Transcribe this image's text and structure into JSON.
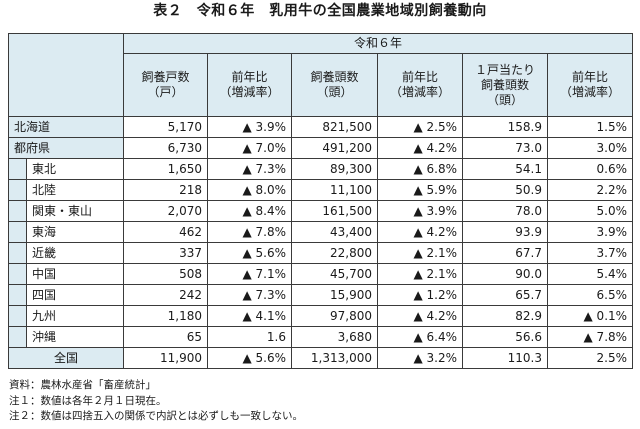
{
  "title": "表２　令和６年　乳用牛の全国農業地域別飼養動向",
  "header": {
    "year": "令和６年",
    "col_households": "飼養戸数\n（戸）",
    "col_households_yoy": "前年比\n（増減率）",
    "col_heads": "飼養頭数\n（頭）",
    "col_heads_yoy": "前年比\n（増減率）",
    "col_per_household": "１戸当たり\n飼養頭数\n（頭）",
    "col_per_household_yoy": "前年比\n（増減率）"
  },
  "rows": [
    {
      "region": "北海道",
      "households": "5,170",
      "households_yoy": "▲ 3.9%",
      "heads": "821,500",
      "heads_yoy": "▲ 2.5%",
      "per": "158.9",
      "per_yoy": "1.5%"
    },
    {
      "region": "都府県",
      "households": "6,730",
      "households_yoy": "▲ 7.0%",
      "heads": "491,200",
      "heads_yoy": "▲ 4.2%",
      "per": "73.0",
      "per_yoy": "3.0%"
    },
    {
      "region": "東北",
      "households": "1,650",
      "households_yoy": "▲ 7.3%",
      "heads": "89,300",
      "heads_yoy": "▲ 6.8%",
      "per": "54.1",
      "per_yoy": "0.6%"
    },
    {
      "region": "北陸",
      "households": "218",
      "households_yoy": "▲ 8.0%",
      "heads": "11,100",
      "heads_yoy": "▲ 5.9%",
      "per": "50.9",
      "per_yoy": "2.2%"
    },
    {
      "region": "関東・東山",
      "households": "2,070",
      "households_yoy": "▲ 8.4%",
      "heads": "161,500",
      "heads_yoy": "▲ 3.9%",
      "per": "78.0",
      "per_yoy": "5.0%"
    },
    {
      "region": "東海",
      "households": "462",
      "households_yoy": "▲ 7.8%",
      "heads": "43,400",
      "heads_yoy": "▲ 4.2%",
      "per": "93.9",
      "per_yoy": "3.9%"
    },
    {
      "region": "近畿",
      "households": "337",
      "households_yoy": "▲ 5.6%",
      "heads": "22,800",
      "heads_yoy": "▲ 2.1%",
      "per": "67.7",
      "per_yoy": "3.7%"
    },
    {
      "region": "中国",
      "households": "508",
      "households_yoy": "▲ 7.1%",
      "heads": "45,700",
      "heads_yoy": "▲ 2.1%",
      "per": "90.0",
      "per_yoy": "5.4%"
    },
    {
      "region": "四国",
      "households": "242",
      "households_yoy": "▲ 7.3%",
      "heads": "15,900",
      "heads_yoy": "▲ 1.2%",
      "per": "65.7",
      "per_yoy": "6.5%"
    },
    {
      "region": "九州",
      "households": "1,180",
      "households_yoy": "▲ 4.1%",
      "heads": "97,800",
      "heads_yoy": "▲ 4.2%",
      "per": "82.9",
      "per_yoy": "▲ 0.1%"
    },
    {
      "region": "沖縄",
      "households": "65",
      "households_yoy": "1.6",
      "heads": "3,680",
      "heads_yoy": "▲ 6.4%",
      "per": "56.6",
      "per_yoy": "▲ 7.8%"
    },
    {
      "region": "全国",
      "households": "11,900",
      "households_yoy": "▲ 5.6%",
      "heads": "1,313,000",
      "heads_yoy": "▲ 3.2%",
      "per": "110.3",
      "per_yoy": "2.5%"
    }
  ],
  "notes": [
    "資料：農林水産省「畜産統計」",
    "注１：数値は各年２月１日現在。",
    "注２：数値は四捨五入の関係で内訳とは必ずしも一致しない。"
  ],
  "colors": {
    "header_bg": "#dcebf2",
    "border": "#3a3a3a"
  }
}
